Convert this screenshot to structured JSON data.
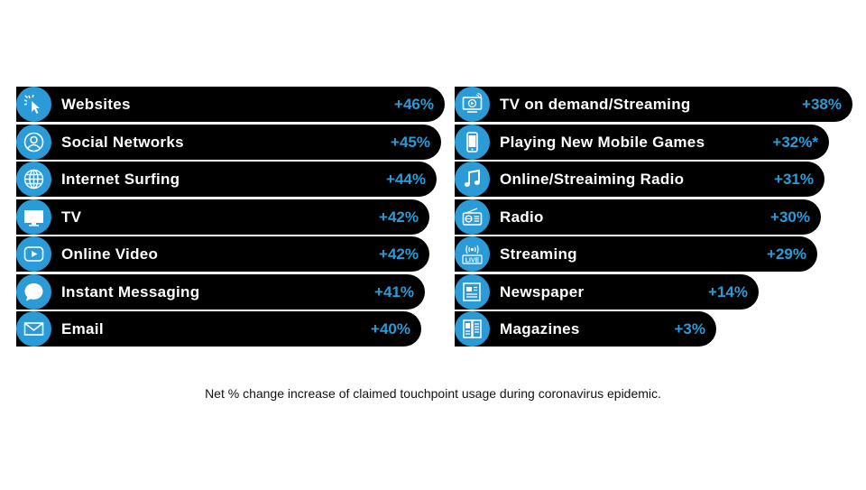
{
  "chart_data": {
    "type": "bar",
    "orientation": "horizontal",
    "caption": "Net % change increase of claimed touchpoint usage during coronavirus epidemic.",
    "bar_color": "#000000",
    "accent_color": "#2a9bd7",
    "columns": [
      {
        "items": [
          {
            "label": "Websites",
            "value": 46,
            "display": "+46%",
            "icon": "cursor-click-icon"
          },
          {
            "label": "Social Networks",
            "value": 45,
            "display": "+45%",
            "icon": "user-profile-icon"
          },
          {
            "label": "Internet Surfing",
            "value": 44,
            "display": "+44%",
            "icon": "globe-icon"
          },
          {
            "label": "TV",
            "value": 42,
            "display": "+42%",
            "icon": "tv-icon"
          },
          {
            "label": "Online Video",
            "value": 42,
            "display": "+42%",
            "icon": "video-play-icon"
          },
          {
            "label": "Instant Messaging",
            "value": 41,
            "display": "+41%",
            "icon": "chat-bubble-icon"
          },
          {
            "label": "Email",
            "value": 40,
            "display": "+40%",
            "icon": "envelope-icon"
          }
        ]
      },
      {
        "items": [
          {
            "label": "TV on demand/Streaming",
            "value": 38,
            "display": "+38%",
            "icon": "tv-play-icon"
          },
          {
            "label": "Playing New Mobile Games",
            "value": 32,
            "display": "+32%*",
            "icon": "smartphone-icon"
          },
          {
            "label": "Online/Streaiming Radio",
            "value": 31,
            "display": "+31%",
            "icon": "music-note-icon"
          },
          {
            "label": "Radio",
            "value": 30,
            "display": "+30%",
            "icon": "radio-icon"
          },
          {
            "label": "Streaming",
            "value": 29,
            "display": "+29%",
            "icon": "live-broadcast-icon"
          },
          {
            "label": "Newspaper",
            "value": 14,
            "display": "+14%",
            "icon": "newspaper-icon"
          },
          {
            "label": "Magazines",
            "value": 3,
            "display": "+3%",
            "icon": "magazine-icon"
          }
        ]
      }
    ]
  }
}
